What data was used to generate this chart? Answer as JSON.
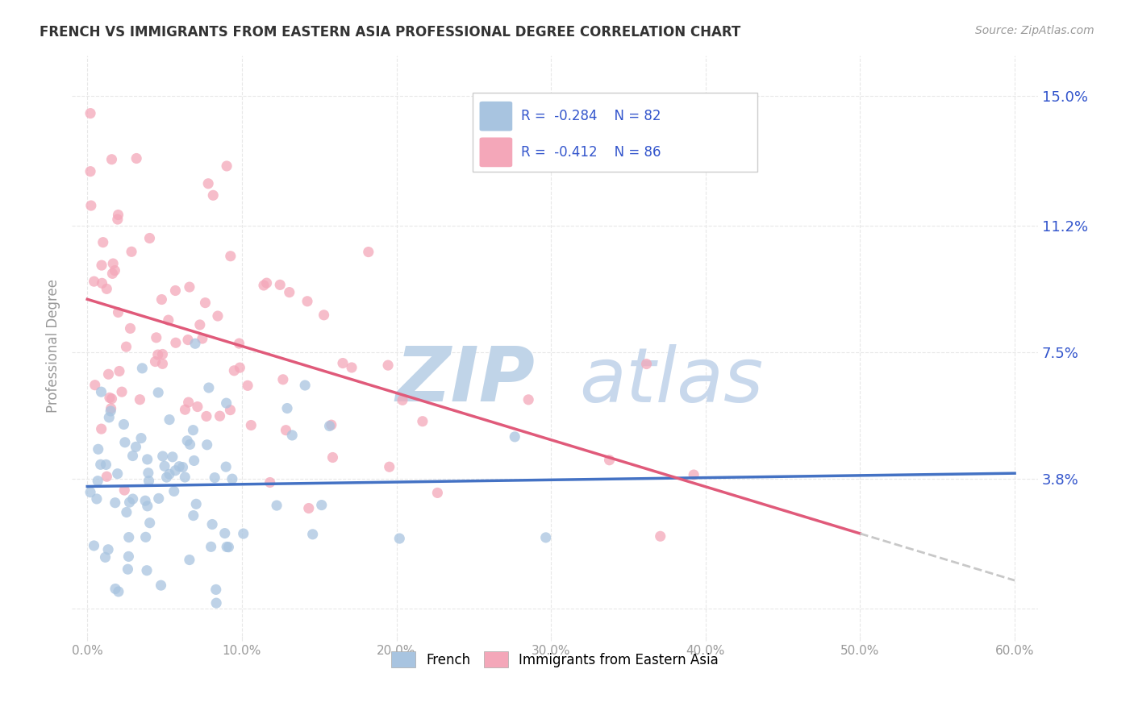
{
  "title": "FRENCH VS IMMIGRANTS FROM EASTERN ASIA PROFESSIONAL DEGREE CORRELATION CHART",
  "source": "Source: ZipAtlas.com",
  "ylabel": "Professional Degree",
  "yticks": [
    0.0,
    0.038,
    0.075,
    0.112,
    0.15
  ],
  "ytick_labels": [
    "",
    "3.8%",
    "7.5%",
    "11.2%",
    "15.0%"
  ],
  "xtick_positions": [
    0.0,
    0.1,
    0.2,
    0.3,
    0.4,
    0.5,
    0.6
  ],
  "xtick_labels": [
    "0.0%",
    "10.0%",
    "20.0%",
    "30.0%",
    "40.0%",
    "50.0%",
    "60.0%"
  ],
  "xlim": [
    -0.01,
    0.615
  ],
  "ylim": [
    -0.008,
    0.162
  ],
  "french_R": "-0.284",
  "french_N": "82",
  "eastern_asia_R": "-0.412",
  "eastern_asia_N": "86",
  "french_color": "#a8c4e0",
  "french_line_color": "#4472c4",
  "eastern_asia_color": "#f4a7b9",
  "eastern_asia_line_color": "#e05a7a",
  "eastern_dashed_color": "#c8c8c8",
  "legend_text_color": "#3355cc",
  "watermark_color_zip": "#c0d4e8",
  "watermark_color_atlas": "#c8d8ec",
  "background_color": "#ffffff",
  "grid_color": "#e8e8e8",
  "axis_label_color": "#999999",
  "title_color": "#333333",
  "source_color": "#999999"
}
